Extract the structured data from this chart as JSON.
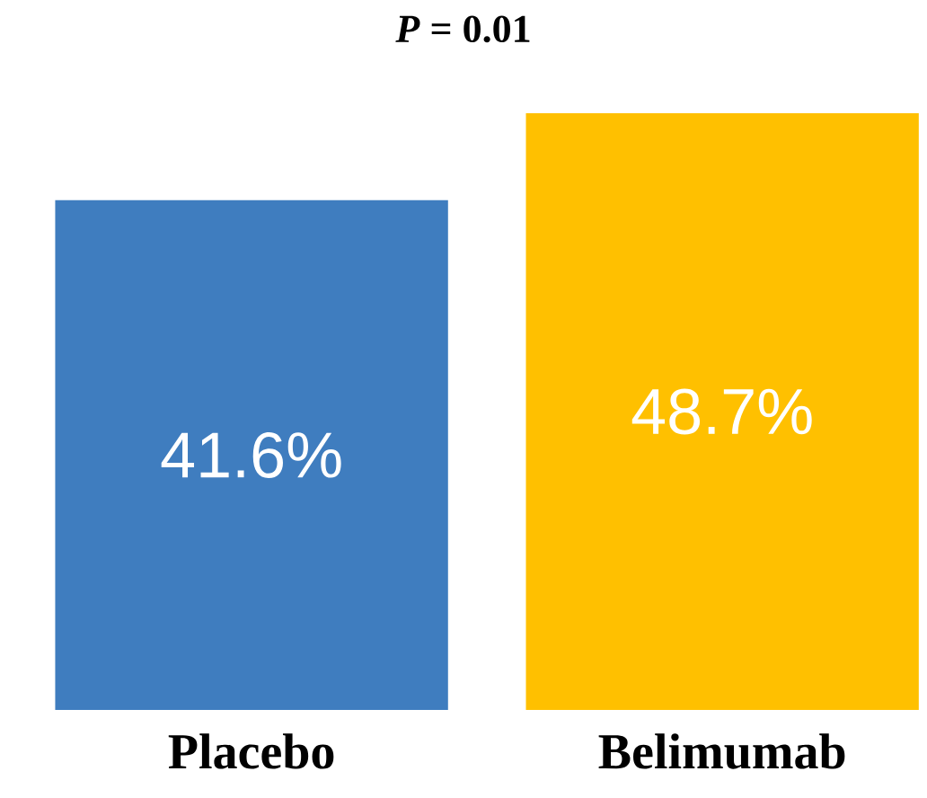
{
  "chart_data": {
    "type": "bar",
    "title": "*P* = 0.01",
    "categories": [
      "Placebo",
      "Belimumab"
    ],
    "values": [
      41.6,
      48.7
    ],
    "colors": [
      "#3f7dbf",
      "#ffc000"
    ],
    "value_labels": [
      "41.6%",
      "48.7%"
    ]
  }
}
